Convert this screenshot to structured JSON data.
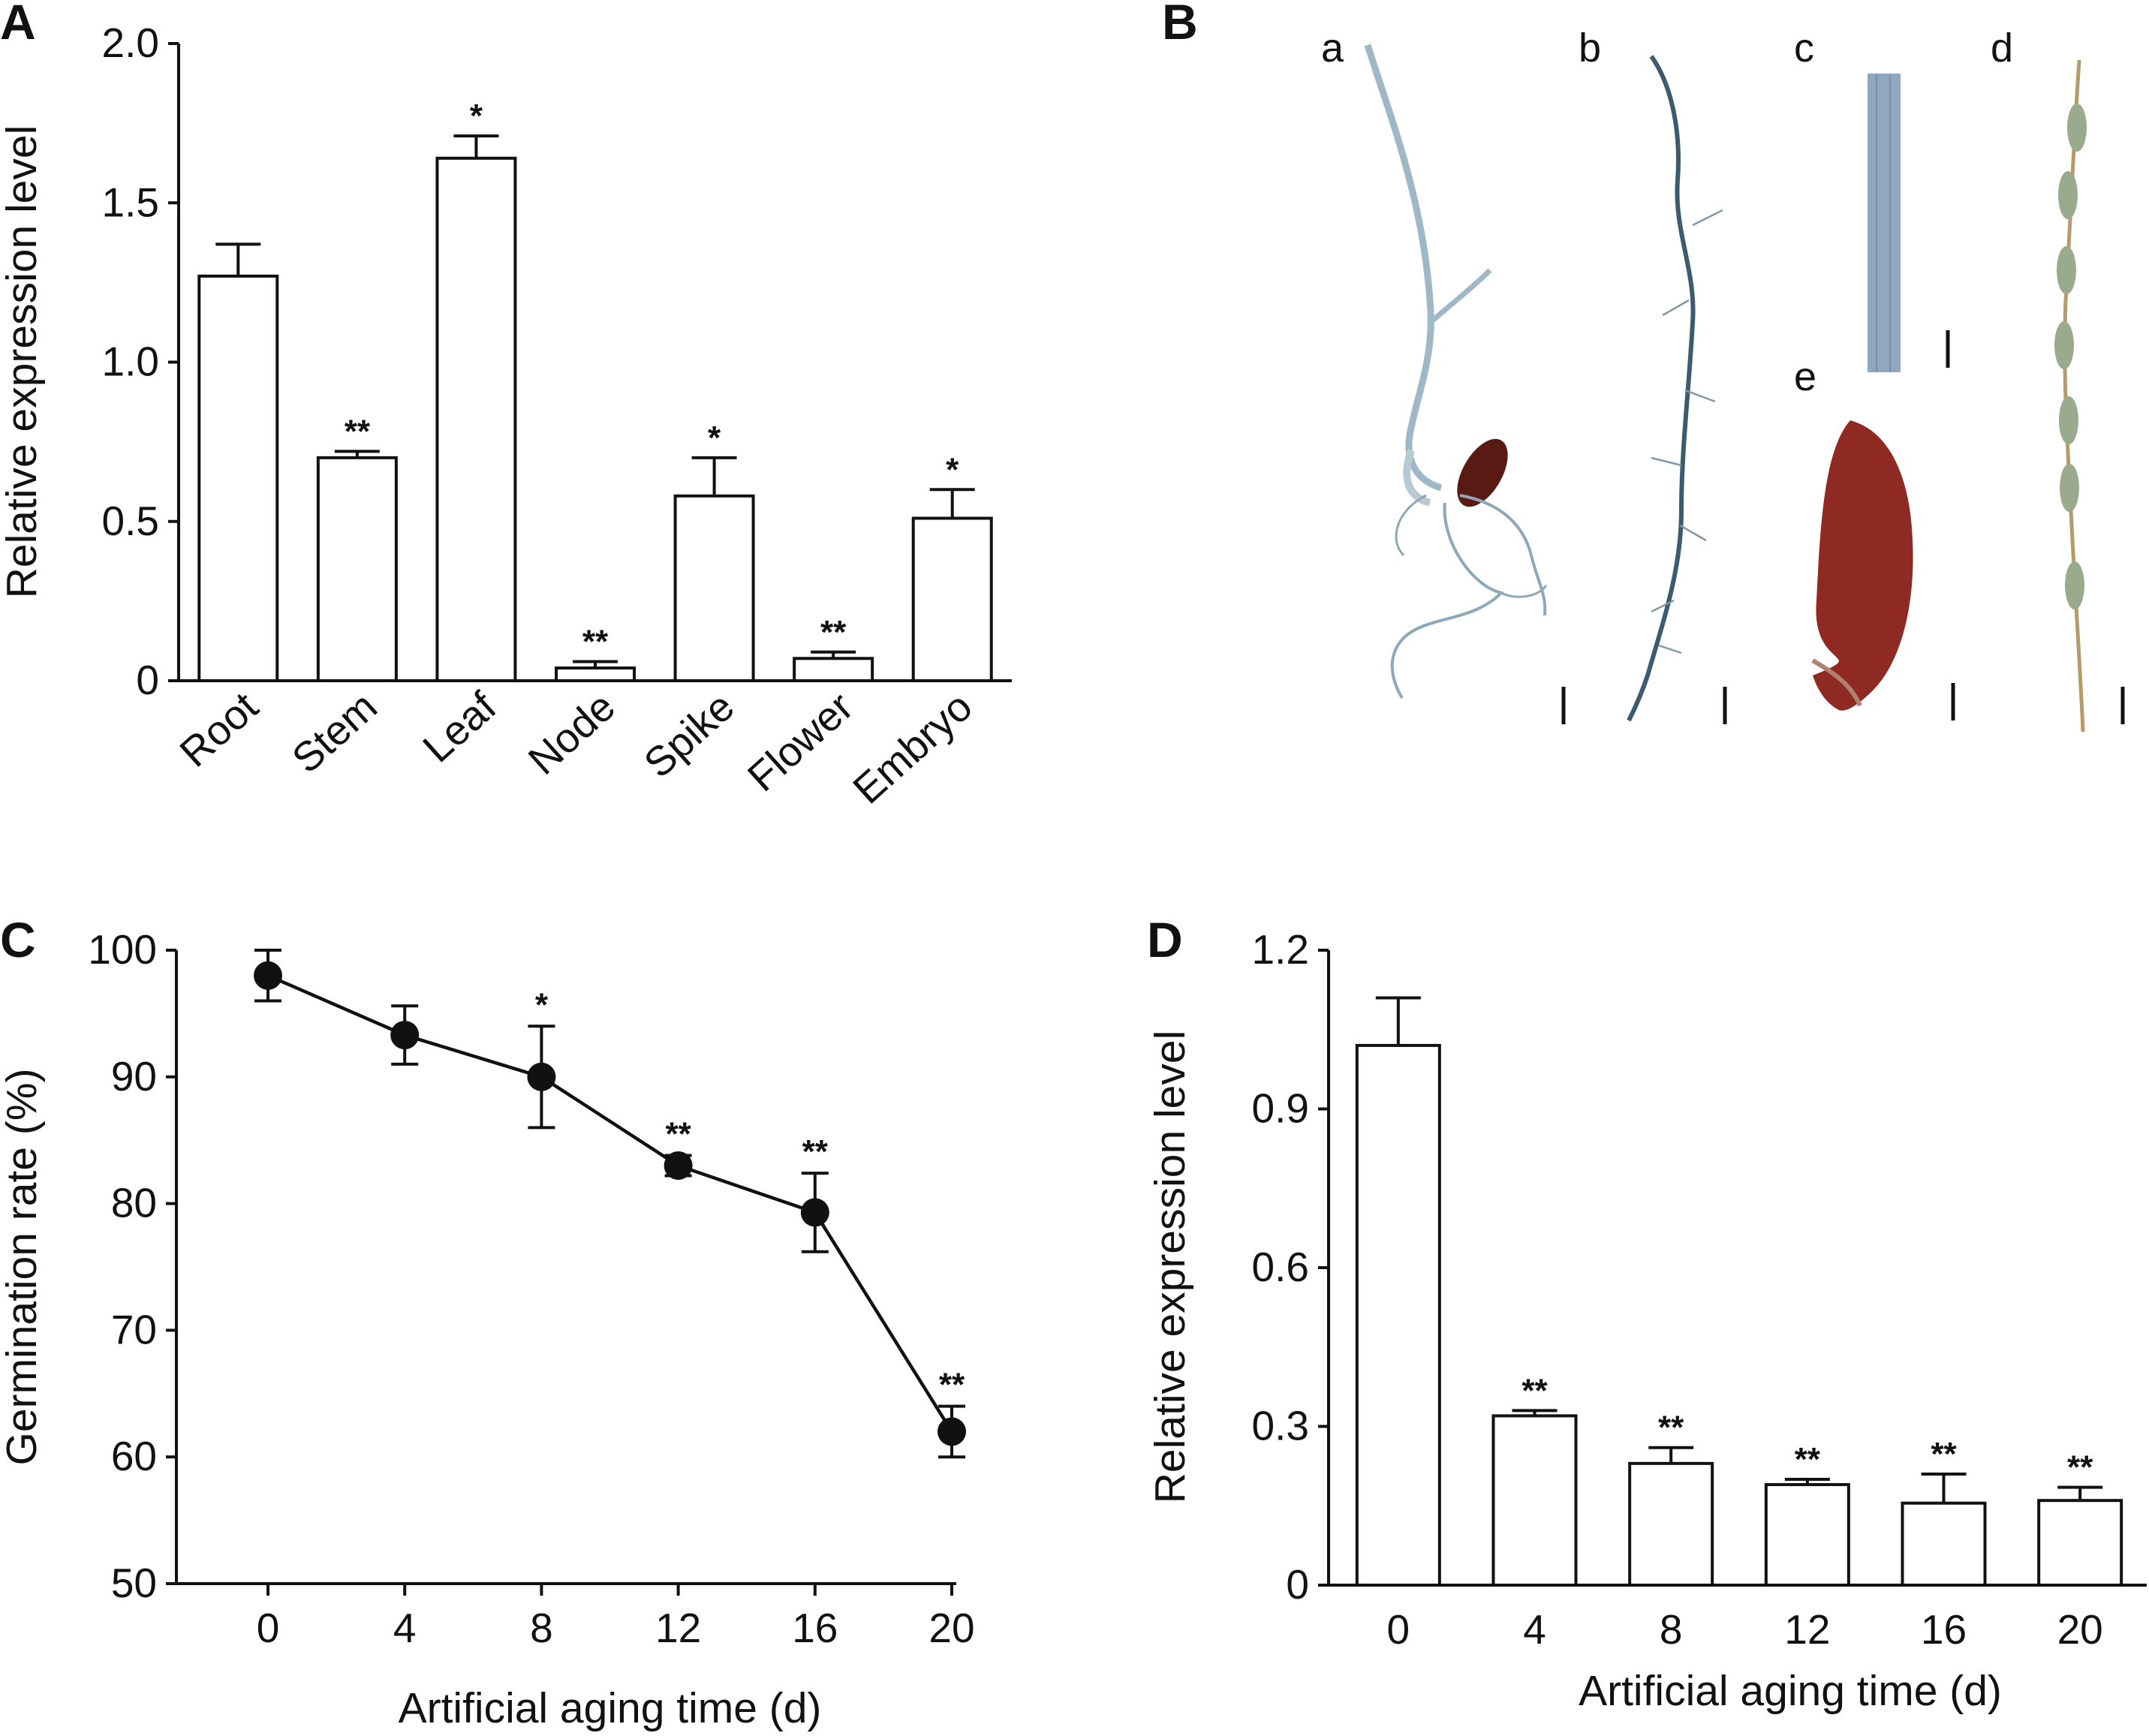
{
  "panels": {
    "A": "A",
    "B": "B",
    "C": "C",
    "D": "D"
  },
  "photo_labels": {
    "a": "a",
    "b": "b",
    "c": "c",
    "d": "d",
    "e": "e"
  },
  "chart_data": [
    {
      "panel": "A",
      "type": "bar",
      "categories": [
        "Root",
        "Stem",
        "Leaf",
        "Node",
        "Spike",
        "Flower",
        "Embryo"
      ],
      "values": [
        1.27,
        0.7,
        1.64,
        0.04,
        0.58,
        0.07,
        0.51
      ],
      "errors": [
        0.1,
        0.02,
        0.07,
        0.02,
        0.12,
        0.02,
        0.09
      ],
      "significance": [
        "",
        "**",
        "*",
        "**",
        "*",
        "**",
        "*"
      ],
      "ylabel": "Relative expression level",
      "ylim": [
        0,
        2.0
      ],
      "yticks": [
        "0",
        "0.5",
        "1.0",
        "1.5",
        "2.0"
      ],
      "ytick_values": [
        0,
        0.5,
        1.0,
        1.5,
        2.0
      ]
    },
    {
      "panel": "C",
      "type": "line",
      "x": [
        0,
        4,
        8,
        12,
        16,
        20
      ],
      "values": [
        98.0,
        93.3,
        90.0,
        83.0,
        79.3,
        62.0
      ],
      "errors": [
        2.0,
        2.3,
        4.0,
        0.8,
        3.1,
        2.0
      ],
      "significance": [
        "",
        "",
        "*",
        "**",
        "**",
        "**"
      ],
      "xlabel": "Artificial aging time (d)",
      "ylabel": "Germination rate (%)",
      "ylim": [
        50,
        100
      ],
      "yticks": [
        "50",
        "60",
        "70",
        "80",
        "90",
        "100"
      ],
      "ytick_values": [
        50,
        60,
        70,
        80,
        90,
        100
      ],
      "xticks": [
        "0",
        "4",
        "8",
        "12",
        "16",
        "20"
      ]
    },
    {
      "panel": "D",
      "type": "bar",
      "categories": [
        "0",
        "4",
        "8",
        "12",
        "16",
        "20"
      ],
      "values": [
        1.02,
        0.32,
        0.23,
        0.19,
        0.155,
        0.16
      ],
      "errors": [
        0.09,
        0.01,
        0.03,
        0.01,
        0.055,
        0.025
      ],
      "significance": [
        "",
        "**",
        "**",
        "**",
        "**",
        "**"
      ],
      "xlabel": "Artificial aging time (d)",
      "ylabel": "Relative expression level",
      "ylim": [
        0,
        1.2
      ],
      "yticks": [
        "0",
        "0.3",
        "0.6",
        "0.9",
        "1.2"
      ],
      "ytick_values": [
        0,
        0.3,
        0.6,
        0.9,
        1.2
      ]
    }
  ]
}
